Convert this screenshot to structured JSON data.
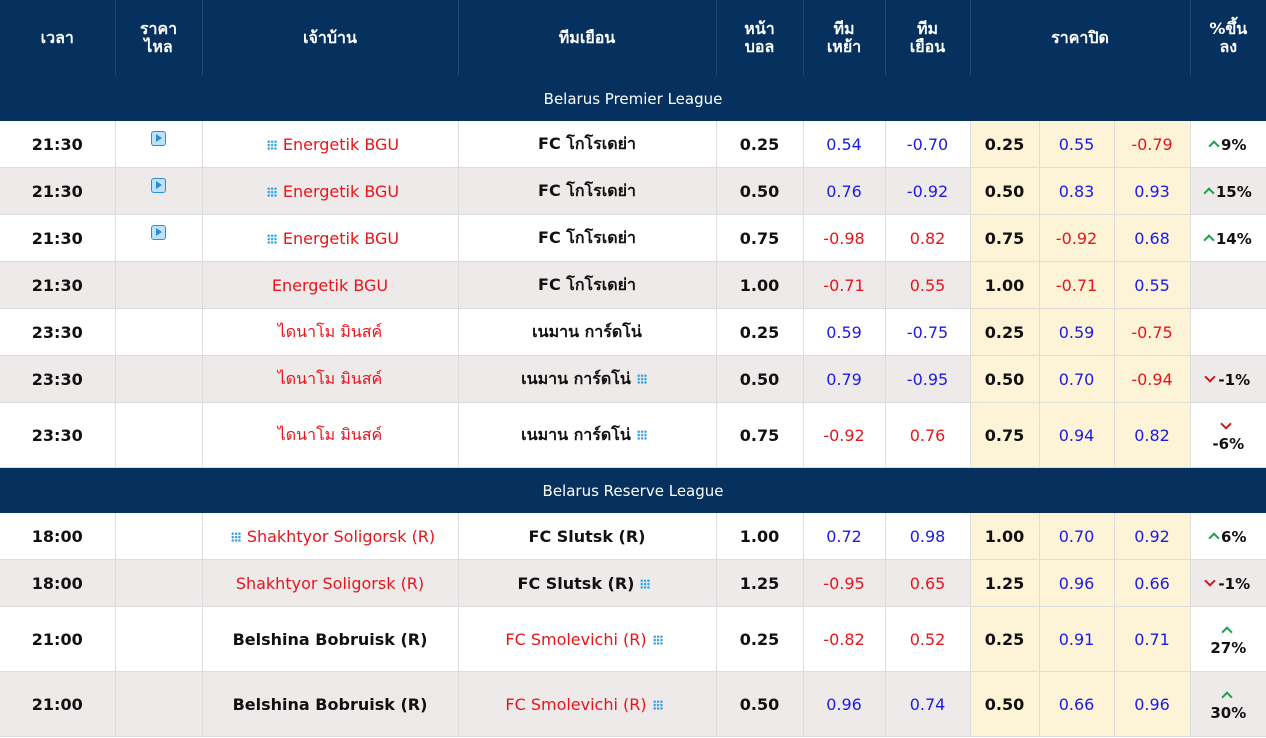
{
  "header": {
    "time": "เวลา",
    "live_price_1": "ราคา",
    "live_price_2": "ไหล",
    "home": "เจ้าบ้าน",
    "away": "ทีมเยือน",
    "handicap_1": "หน้า",
    "handicap_2": "บอล",
    "home_odds_1": "ทีม",
    "home_odds_2": "เหย้า",
    "away_odds_1": "ทีม",
    "away_odds_2": "เยือน",
    "closing": "ราคาปิด",
    "change_1": "%ขึ้น",
    "change_2": "ลง"
  },
  "leagues": [
    {
      "name": "Belarus Premier League"
    },
    {
      "name": "Belarus Reserve League"
    }
  ],
  "matches": [
    {
      "time": "21:30",
      "home": "Energetik BGU",
      "away": "FC โกโรเดย่า",
      "hdp": "0.25",
      "home_odds": "0.54",
      "away_odds": "-0.70",
      "c_hdp": "0.25",
      "c_home": "0.55",
      "c_away": "-0.79",
      "change": "9%"
    },
    {
      "time": "21:30",
      "home": "Energetik BGU",
      "away": "FC โกโรเดย่า",
      "hdp": "0.50",
      "home_odds": "0.76",
      "away_odds": "-0.92",
      "c_hdp": "0.50",
      "c_home": "0.83",
      "c_away": "0.93",
      "change": "15%"
    },
    {
      "time": "21:30",
      "home": "Energetik BGU",
      "away": "FC โกโรเดย่า",
      "hdp": "0.75",
      "home_odds": "-0.98",
      "away_odds": "0.82",
      "c_hdp": "0.75",
      "c_home": "-0.92",
      "c_away": "0.68",
      "change": "14%"
    },
    {
      "time": "21:30",
      "home": "Energetik BGU",
      "away": "FC โกโรเดย่า",
      "hdp": "1.00",
      "home_odds": "-0.71",
      "away_odds": "0.55",
      "c_hdp": "1.00",
      "c_home": "-0.71",
      "c_away": "0.55",
      "change": ""
    },
    {
      "time": "23:30",
      "home": "ไดนาโม มินสค์",
      "away": "เนมาน การ์ดโน่",
      "hdp": "0.25",
      "home_odds": "0.59",
      "away_odds": "-0.75",
      "c_hdp": "0.25",
      "c_home": "0.59",
      "c_away": "-0.75",
      "change": ""
    },
    {
      "time": "23:30",
      "home": "ไดนาโม มินสค์",
      "away": "เนมาน การ์ดโน่",
      "hdp": "0.50",
      "home_odds": "0.79",
      "away_odds": "-0.95",
      "c_hdp": "0.50",
      "c_home": "0.70",
      "c_away": "-0.94",
      "change": "-1%"
    },
    {
      "time": "23:30",
      "home": "ไดนาโม มินสค์",
      "away": "เนมาน การ์ดโน่",
      "hdp": "0.75",
      "home_odds": "-0.92",
      "away_odds": "0.76",
      "c_hdp": "0.75",
      "c_home": "0.94",
      "c_away": "0.82",
      "change": "-6%"
    },
    {
      "time": "18:00",
      "home": "Shakhtyor Soligorsk (R)",
      "away": "FC Slutsk (R)",
      "hdp": "1.00",
      "home_odds": "0.72",
      "away_odds": "0.98",
      "c_hdp": "1.00",
      "c_home": "0.70",
      "c_away": "0.92",
      "change": "6%"
    },
    {
      "time": "18:00",
      "home": "Shakhtyor Soligorsk (R)",
      "away": "FC Slutsk (R)",
      "hdp": "1.25",
      "home_odds": "-0.95",
      "away_odds": "0.65",
      "c_hdp": "1.25",
      "c_home": "0.96",
      "c_away": "0.66",
      "change": "-1%"
    },
    {
      "time": "21:00",
      "home": "Belshina Bobruisk (R)",
      "away": "FC Smolevichi (R)",
      "hdp": "0.25",
      "home_odds": "-0.82",
      "away_odds": "0.52",
      "c_hdp": "0.25",
      "c_home": "0.91",
      "c_away": "0.71",
      "change": "27%"
    },
    {
      "time": "21:00",
      "home": "Belshina Bobruisk (R)",
      "away": "FC Smolevichi (R)",
      "hdp": "0.50",
      "home_odds": "0.96",
      "away_odds": "0.74",
      "c_hdp": "0.50",
      "c_home": "0.66",
      "c_away": "0.96",
      "change": "30%"
    }
  ],
  "colors": {
    "header_bg": "#06305d",
    "positive": "#1b1be6",
    "negative": "#e8141a",
    "favorite": "#e8141a",
    "closing_bg": "#fdf3d6",
    "up": "#18a34a",
    "down": "#d0161d"
  }
}
